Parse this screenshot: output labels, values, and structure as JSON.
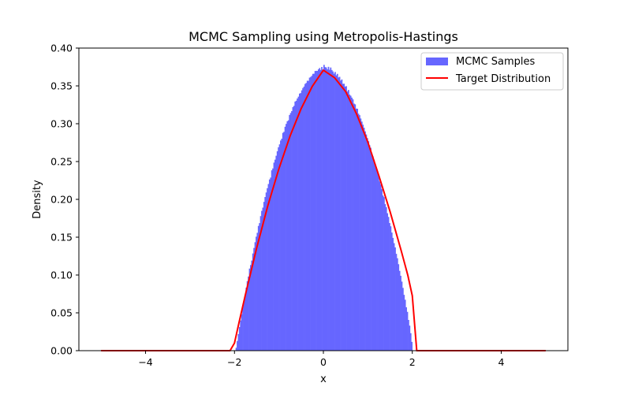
{
  "chart_data": {
    "type": "bar",
    "title": "MCMC Sampling using Metropolis-Hastings",
    "xlabel": "x",
    "ylabel": "Density",
    "xlim": [
      -5.5,
      5.5
    ],
    "ylim": [
      0.0,
      0.4
    ],
    "x_ticks": [
      -4,
      -2,
      0,
      2,
      4
    ],
    "x_tick_labels": [
      "−4",
      "−2",
      "0",
      "2",
      "4"
    ],
    "y_ticks": [
      0.0,
      0.05,
      0.1,
      0.15,
      0.2,
      0.25,
      0.3,
      0.35,
      0.4
    ],
    "y_tick_labels": [
      "0.00",
      "0.05",
      "0.10",
      "0.15",
      "0.20",
      "0.25",
      "0.30",
      "0.35",
      "0.40"
    ],
    "legend_position": "top-right",
    "grid": false,
    "series": [
      {
        "name": "MCMC Samples",
        "kind": "histogram",
        "color": "#6666ff",
        "bin_range": [
          -2.0,
          2.0
        ],
        "bin_count": 160,
        "values": [
          0.0,
          0.0039,
          0.0128,
          0.022,
          0.0313,
          0.0399,
          0.0481,
          0.058,
          0.0656,
          0.0735,
          0.0833,
          0.0919,
          0.098,
          0.1085,
          0.1132,
          0.1191,
          0.1285,
          0.1358,
          0.1434,
          0.1507,
          0.1558,
          0.1649,
          0.1686,
          0.1779,
          0.1848,
          0.1891,
          0.1967,
          0.2031,
          0.2091,
          0.2148,
          0.2203,
          0.2263,
          0.2288,
          0.2384,
          0.2409,
          0.2486,
          0.2525,
          0.2577,
          0.2636,
          0.2689,
          0.2727,
          0.2778,
          0.2802,
          0.2879,
          0.2893,
          0.296,
          0.2998,
          0.3033,
          0.3045,
          0.3116,
          0.3142,
          0.3167,
          0.322,
          0.3236,
          0.3293,
          0.3304,
          0.3334,
          0.3358,
          0.3398,
          0.3405,
          0.3441,
          0.3472,
          0.3491,
          0.3526,
          0.3539,
          0.3568,
          0.3567,
          0.3609,
          0.3618,
          0.3633,
          0.3659,
          0.3661,
          0.3697,
          0.3699,
          0.3698,
          0.3719,
          0.3736,
          0.3711,
          0.375,
          0.3716,
          0.3778,
          0.3748,
          0.3744,
          0.3719,
          0.3752,
          0.3713,
          0.3743,
          0.371,
          0.3691,
          0.3662,
          0.3684,
          0.3639,
          0.3659,
          0.3612,
          0.362,
          0.357,
          0.3585,
          0.3527,
          0.3529,
          0.3491,
          0.3496,
          0.3426,
          0.3446,
          0.3385,
          0.337,
          0.3345,
          0.3322,
          0.3266,
          0.3256,
          0.32,
          0.3198,
          0.3133,
          0.3113,
          0.3069,
          0.3028,
          0.2987,
          0.2947,
          0.2899,
          0.2858,
          0.281,
          0.2769,
          0.2715,
          0.2682,
          0.2606,
          0.2569,
          0.2523,
          0.2472,
          0.241,
          0.2364,
          0.2309,
          0.2237,
          0.2197,
          0.2136,
          0.2052,
          0.203,
          0.1937,
          0.1897,
          0.1817,
          0.1768,
          0.1687,
          0.1644,
          0.1561,
          0.1491,
          0.1421,
          0.1365,
          0.128,
          0.1222,
          0.1143,
          0.1055,
          0.099,
          0.0913,
          0.083,
          0.0738,
          0.0673,
          0.0574,
          0.0513,
          0.0406,
          0.0331,
          0.0231,
          0.0116
        ]
      },
      {
        "name": "Target Distribution",
        "kind": "line",
        "color": "#ff0000",
        "x": [
          -5.0,
          -2.1,
          -2.0,
          -1.9,
          -1.75,
          -1.5,
          -1.25,
          -1.0,
          -0.75,
          -0.5,
          -0.25,
          0.0,
          0.25,
          0.5,
          0.75,
          1.0,
          1.25,
          1.5,
          1.75,
          1.9,
          2.0,
          2.1,
          5.0
        ],
        "y": [
          0.0,
          0.0,
          0.01,
          0.0366,
          0.075,
          0.1359,
          0.1916,
          0.2406,
          0.2837,
          0.32,
          0.3494,
          0.3708,
          0.3609,
          0.3426,
          0.3124,
          0.2756,
          0.2309,
          0.1838,
          0.1322,
          0.0995,
          0.0725,
          0.0,
          0.0
        ]
      }
    ]
  }
}
